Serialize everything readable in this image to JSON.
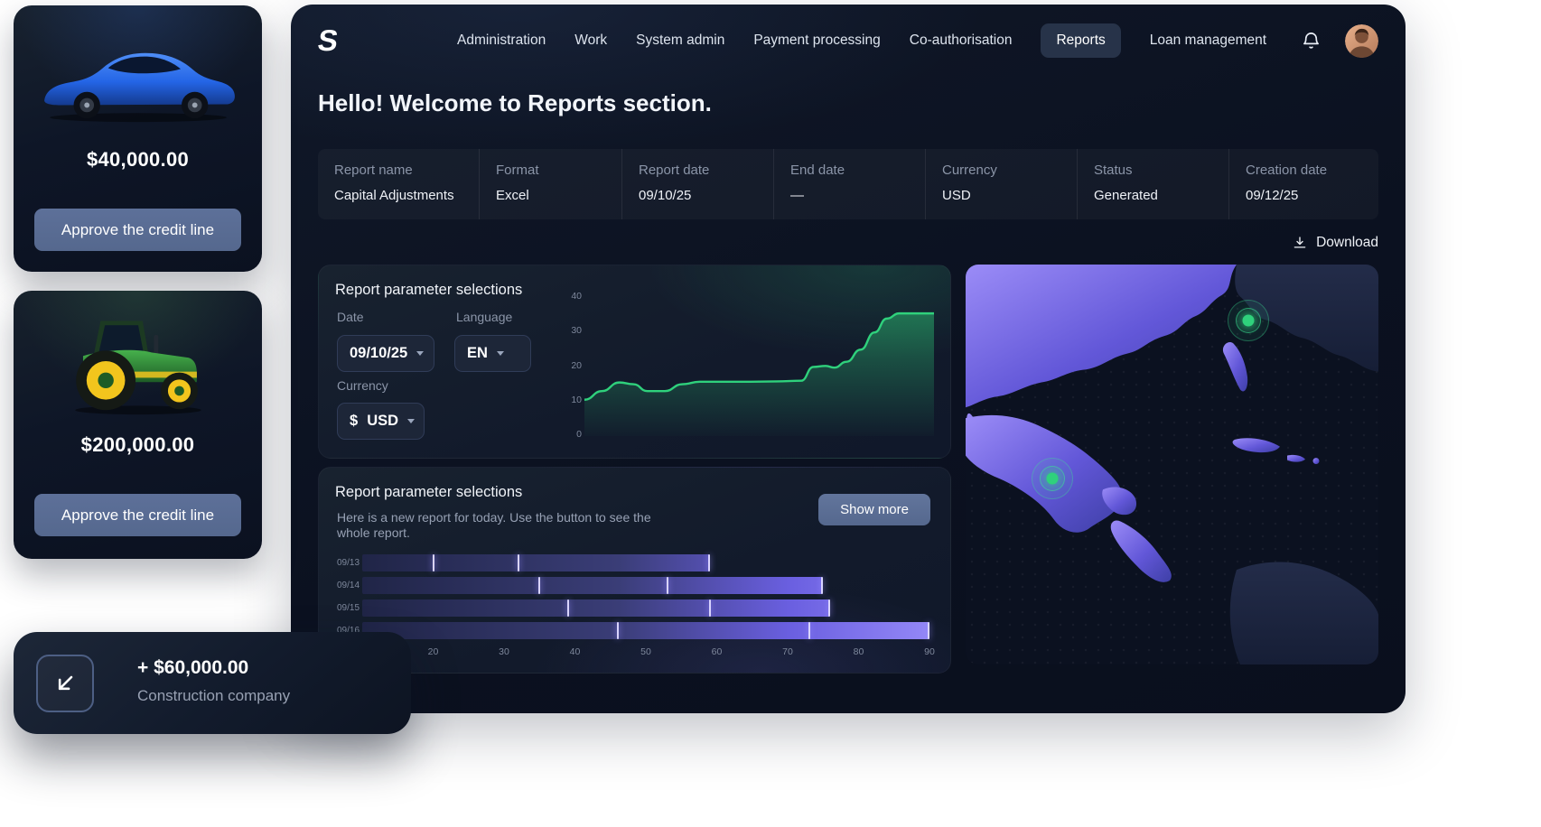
{
  "brand": {
    "logo": "S"
  },
  "nav": {
    "items": [
      {
        "label": "Administration",
        "active": false
      },
      {
        "label": "Work",
        "active": false
      },
      {
        "label": "System admin",
        "active": false
      },
      {
        "label": "Payment processing",
        "active": false
      },
      {
        "label": "Co-authorisation",
        "active": false
      },
      {
        "label": "Reports",
        "active": true
      },
      {
        "label": "Loan management",
        "active": false
      }
    ]
  },
  "header": {
    "greeting": "Hello! Welcome to Reports section."
  },
  "report_summary": {
    "columns": [
      {
        "label": "Report name",
        "value": "Capital Adjustments"
      },
      {
        "label": "Format",
        "value": "Excel"
      },
      {
        "label": "Report date",
        "value": "09/10/25"
      },
      {
        "label": "End date",
        "value": "—"
      },
      {
        "label": "Currency",
        "value": "USD"
      },
      {
        "label": "Status",
        "value": "Generated"
      },
      {
        "label": "Creation date",
        "value": "09/12/25"
      }
    ]
  },
  "download": {
    "label": "Download"
  },
  "parameters_panel": {
    "title": "Report parameter selections",
    "date_label": "Date",
    "date_value": "09/10/25",
    "language_label": "Language",
    "language_value": "EN",
    "currency_label": "Currency",
    "currency_symbol": "$",
    "currency_value": "USD"
  },
  "report_panel": {
    "title": "Report parameter selections",
    "description": "Here is a new report for today. Use the button to see the whole report.",
    "show_more_label": "Show more"
  },
  "credit_cards": [
    {
      "image": "blue-car",
      "price": "$40,000.00",
      "button_label": "Approve the credit line"
    },
    {
      "image": "green-tractor",
      "price": "$200,000.00",
      "button_label": "Approve the credit line"
    }
  ],
  "transaction_card": {
    "amount": "+ $60,000.00",
    "company": "Construction company"
  },
  "map": {
    "markers": [
      {
        "x": 0.685,
        "y": 0.14
      },
      {
        "x": 0.21,
        "y": 0.535
      }
    ]
  },
  "colors": {
    "accent_green": "#2fd17c",
    "bar_dark": "#202547",
    "bar_light": "#9488f7",
    "slate_button": "#55688e",
    "panel_bg": "#121a2b",
    "text_muted": "#8b95a8"
  },
  "chart_data": [
    {
      "type": "area",
      "title": "Report parameter selections",
      "xlabel": "",
      "ylabel": "",
      "ylim": [
        0,
        40
      ],
      "yticks": [
        0,
        10,
        20,
        30,
        40
      ],
      "grid": false,
      "legend": false,
      "line_color": "#2fd17c",
      "points": [
        [
          0,
          10
        ],
        [
          0.05,
          12.5
        ],
        [
          0.1,
          15
        ],
        [
          0.14,
          14.5
        ],
        [
          0.18,
          12.5
        ],
        [
          0.23,
          12.5
        ],
        [
          0.28,
          14.5
        ],
        [
          0.33,
          15.2
        ],
        [
          0.45,
          15.2
        ],
        [
          0.55,
          15.3
        ],
        [
          0.62,
          15.5
        ],
        [
          0.655,
          19.5
        ],
        [
          0.69,
          19.8
        ],
        [
          0.715,
          19.3
        ],
        [
          0.75,
          21
        ],
        [
          0.79,
          24.5
        ],
        [
          0.83,
          29.5
        ],
        [
          0.865,
          33.5
        ],
        [
          0.9,
          35
        ],
        [
          1,
          35
        ]
      ]
    },
    {
      "type": "bar",
      "orientation": "horizontal",
      "title": "Report parameter selections",
      "categories": [
        "09/13",
        "09/14",
        "09/15",
        "09/16"
      ],
      "xlim": [
        10,
        90
      ],
      "xticks": [
        20,
        30,
        40,
        50,
        60,
        70,
        80,
        90
      ],
      "grid": false,
      "legend": false,
      "rows": [
        {
          "category": "09/13",
          "segments": [
            [
              10,
              20
            ],
            [
              20,
              32
            ],
            [
              32,
              59
            ]
          ]
        },
        {
          "category": "09/14",
          "segments": [
            [
              10,
              35
            ],
            [
              35,
              53
            ],
            [
              53,
              75
            ]
          ]
        },
        {
          "category": "09/15",
          "segments": [
            [
              10,
              39
            ],
            [
              39,
              59
            ],
            [
              59,
              76
            ]
          ]
        },
        {
          "category": "09/16",
          "segments": [
            [
              10,
              46
            ],
            [
              46,
              73
            ],
            [
              73,
              90
            ]
          ]
        }
      ]
    }
  ]
}
